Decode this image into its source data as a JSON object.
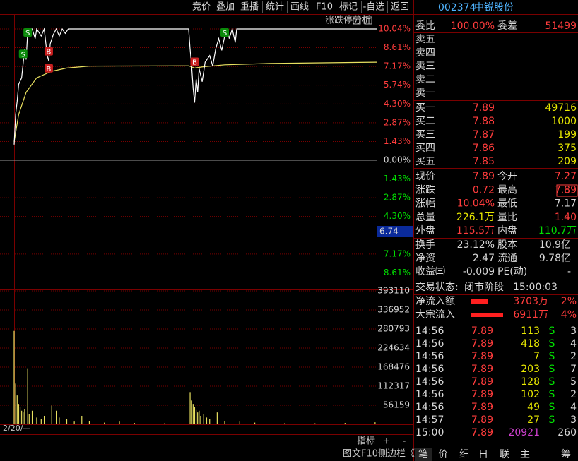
{
  "toolbar": [
    "竞价",
    "叠加",
    "重播",
    "统计",
    "画线",
    "F10",
    "标记",
    "-自选",
    "返回"
  ],
  "header": {
    "code": "002374",
    "name": "中锐股份"
  },
  "chart": {
    "title": "涨跌停分析",
    "xlim": [
      0,
      241
    ],
    "ylim": [
      -10.04,
      10.04
    ],
    "yticks": [
      {
        "value": 10.04,
        "label": "10.04%"
      },
      {
        "value": 8.61,
        "label": "8.61%"
      },
      {
        "value": 7.17,
        "label": "7.17%"
      },
      {
        "value": 5.74,
        "label": "5.74%"
      },
      {
        "value": 4.3,
        "label": "4.30%"
      },
      {
        "value": 2.87,
        "label": "2.87%"
      },
      {
        "value": 1.43,
        "label": "1.43%"
      },
      {
        "value": 0,
        "label": "0.00%"
      },
      {
        "value": -1.43,
        "label": "1.43%"
      },
      {
        "value": -2.87,
        "label": "2.87%"
      },
      {
        "value": -4.3,
        "label": "4.30%"
      },
      {
        "value": -7.17,
        "label": "7.17%"
      },
      {
        "value": -8.61,
        "label": "8.61%"
      }
    ],
    "cursor_label": "6.74",
    "price": {
      "x": [
        0,
        1,
        2,
        3,
        5,
        7,
        8,
        9,
        10,
        12,
        14,
        15,
        18,
        20,
        22,
        23,
        24,
        26,
        28,
        30,
        32,
        34,
        36,
        116,
        117,
        118,
        119,
        120,
        121,
        122,
        123,
        125,
        127,
        130,
        132,
        134,
        136,
        138,
        140,
        142,
        143,
        145,
        147,
        148,
        241
      ],
      "values": [
        1.2,
        3.5,
        4.5,
        5.8,
        6.3,
        8.5,
        7.7,
        9.8,
        10.04,
        10.04,
        9.3,
        10.04,
        9.5,
        10.04,
        8.0,
        7.6,
        8.9,
        9.6,
        10.04,
        9.5,
        10.04,
        9.7,
        10.04,
        10.04,
        8.5,
        7.2,
        5.5,
        4.4,
        6.2,
        5.2,
        7.0,
        6.0,
        7.5,
        8.0,
        7.2,
        8.5,
        9.3,
        8.4,
        9.5,
        10.04,
        9.3,
        10.04,
        9.0,
        10.04,
        10.04
      ]
    },
    "avg": {
      "x": [
        0,
        3,
        8,
        15,
        25,
        35,
        50,
        116,
        120,
        126,
        140,
        170,
        241
      ],
      "values": [
        1.4,
        3.5,
        5.2,
        6.3,
        6.8,
        7.05,
        7.2,
        7.22,
        7.05,
        7.15,
        7.3,
        7.4,
        7.5
      ]
    },
    "markers": [
      {
        "label": "S",
        "x": 9,
        "value": 10.04
      },
      {
        "label": "S",
        "x": 6,
        "value": 8.4
      },
      {
        "label": "B",
        "x": 23,
        "value": 8.6
      },
      {
        "label": "B",
        "x": 23,
        "value": 7.3
      },
      {
        "label": "B",
        "x": 120,
        "value": 7.8
      },
      {
        "label": "S",
        "x": 140,
        "value": 10.04
      }
    ],
    "volume": {
      "ylim": [
        0,
        393110
      ],
      "yticks": [
        393110,
        336952,
        280793,
        224634,
        168476,
        112317,
        56159
      ],
      "x": [
        0,
        1,
        2,
        3,
        4,
        5,
        6,
        7,
        9,
        10,
        12,
        15,
        18,
        20,
        25,
        28,
        30,
        35,
        40,
        45,
        50,
        60,
        70,
        80,
        100,
        117,
        118,
        119,
        120,
        121,
        122,
        123,
        124,
        126,
        128,
        130,
        135,
        140,
        150,
        160,
        180,
        200,
        220,
        240
      ],
      "values": [
        275000,
        120000,
        85000,
        60000,
        50000,
        40000,
        35000,
        45000,
        165000,
        30000,
        40000,
        20000,
        15000,
        25000,
        55000,
        40000,
        20000,
        15000,
        8000,
        25000,
        10000,
        5000,
        8000,
        4000,
        3000,
        95000,
        70000,
        60000,
        50000,
        42000,
        35000,
        40000,
        25000,
        30000,
        20000,
        15000,
        35000,
        10000,
        8000,
        5000,
        4000,
        3000,
        4000,
        6000
      ]
    },
    "date_label": "2/20/—",
    "indicator": "指标",
    "plus": "+",
    "minus": "-",
    "footer": [
      "图文F10",
      "侧边栏《"
    ]
  },
  "quote": {
    "weibi": {
      "label": "委比",
      "value": "100.00%",
      "label2": "委差",
      "value2": "51499"
    },
    "asks": [
      "卖五",
      "卖四",
      "卖三",
      "卖二",
      "卖一"
    ],
    "bids": [
      {
        "label": "买一",
        "price": "7.89",
        "volume": "49716"
      },
      {
        "label": "买二",
        "price": "7.88",
        "volume": "1000"
      },
      {
        "label": "买三",
        "price": "7.87",
        "volume": "199"
      },
      {
        "label": "买四",
        "price": "7.86",
        "volume": "375"
      },
      {
        "label": "买五",
        "price": "7.85",
        "volume": "209"
      }
    ],
    "stats": [
      [
        "现价",
        "7.89",
        "今开",
        "7.27"
      ],
      [
        "涨跌",
        "0.72",
        "最高",
        "7.89"
      ],
      [
        "涨幅",
        "10.04%",
        "最低",
        "7.17"
      ],
      [
        "总量",
        "226.1万",
        "量比",
        "1.40"
      ],
      [
        "外盘",
        "115.5万",
        "内盘",
        "110.7万"
      ]
    ],
    "fundamentals": [
      [
        "换手",
        "23.12%",
        "股本",
        "10.9亿"
      ],
      [
        "净资",
        "2.47",
        "流通",
        "9.78亿"
      ],
      [
        "收益㈢",
        "-0.009",
        "PE(动)",
        "-"
      ]
    ],
    "status": {
      "label": "交易状态:",
      "phase": "闭市阶段",
      "time": "15:00:03"
    },
    "flows": [
      [
        "净流入额",
        "3703万",
        "2%"
      ],
      [
        "大宗流入",
        "6911万",
        "4%"
      ]
    ],
    "trades": [
      [
        "14:56",
        "7.89",
        "113",
        "S",
        "3"
      ],
      [
        "14:56",
        "7.89",
        "418",
        "S",
        "4"
      ],
      [
        "14:56",
        "7.89",
        "7",
        "S",
        "2"
      ],
      [
        "14:56",
        "7.89",
        "203",
        "S",
        "7"
      ],
      [
        "14:56",
        "7.89",
        "128",
        "S",
        "5"
      ],
      [
        "14:56",
        "7.89",
        "102",
        "S",
        "2"
      ],
      [
        "14:56",
        "7.89",
        "49",
        "S",
        "4"
      ],
      [
        "14:57",
        "7.89",
        "27",
        "S",
        "3"
      ],
      [
        "15:00",
        "7.89",
        "20921",
        null,
        "260"
      ]
    ],
    "tabs": [
      "笔",
      "价",
      "细",
      "日",
      "联",
      "主",
      "筹"
    ]
  }
}
